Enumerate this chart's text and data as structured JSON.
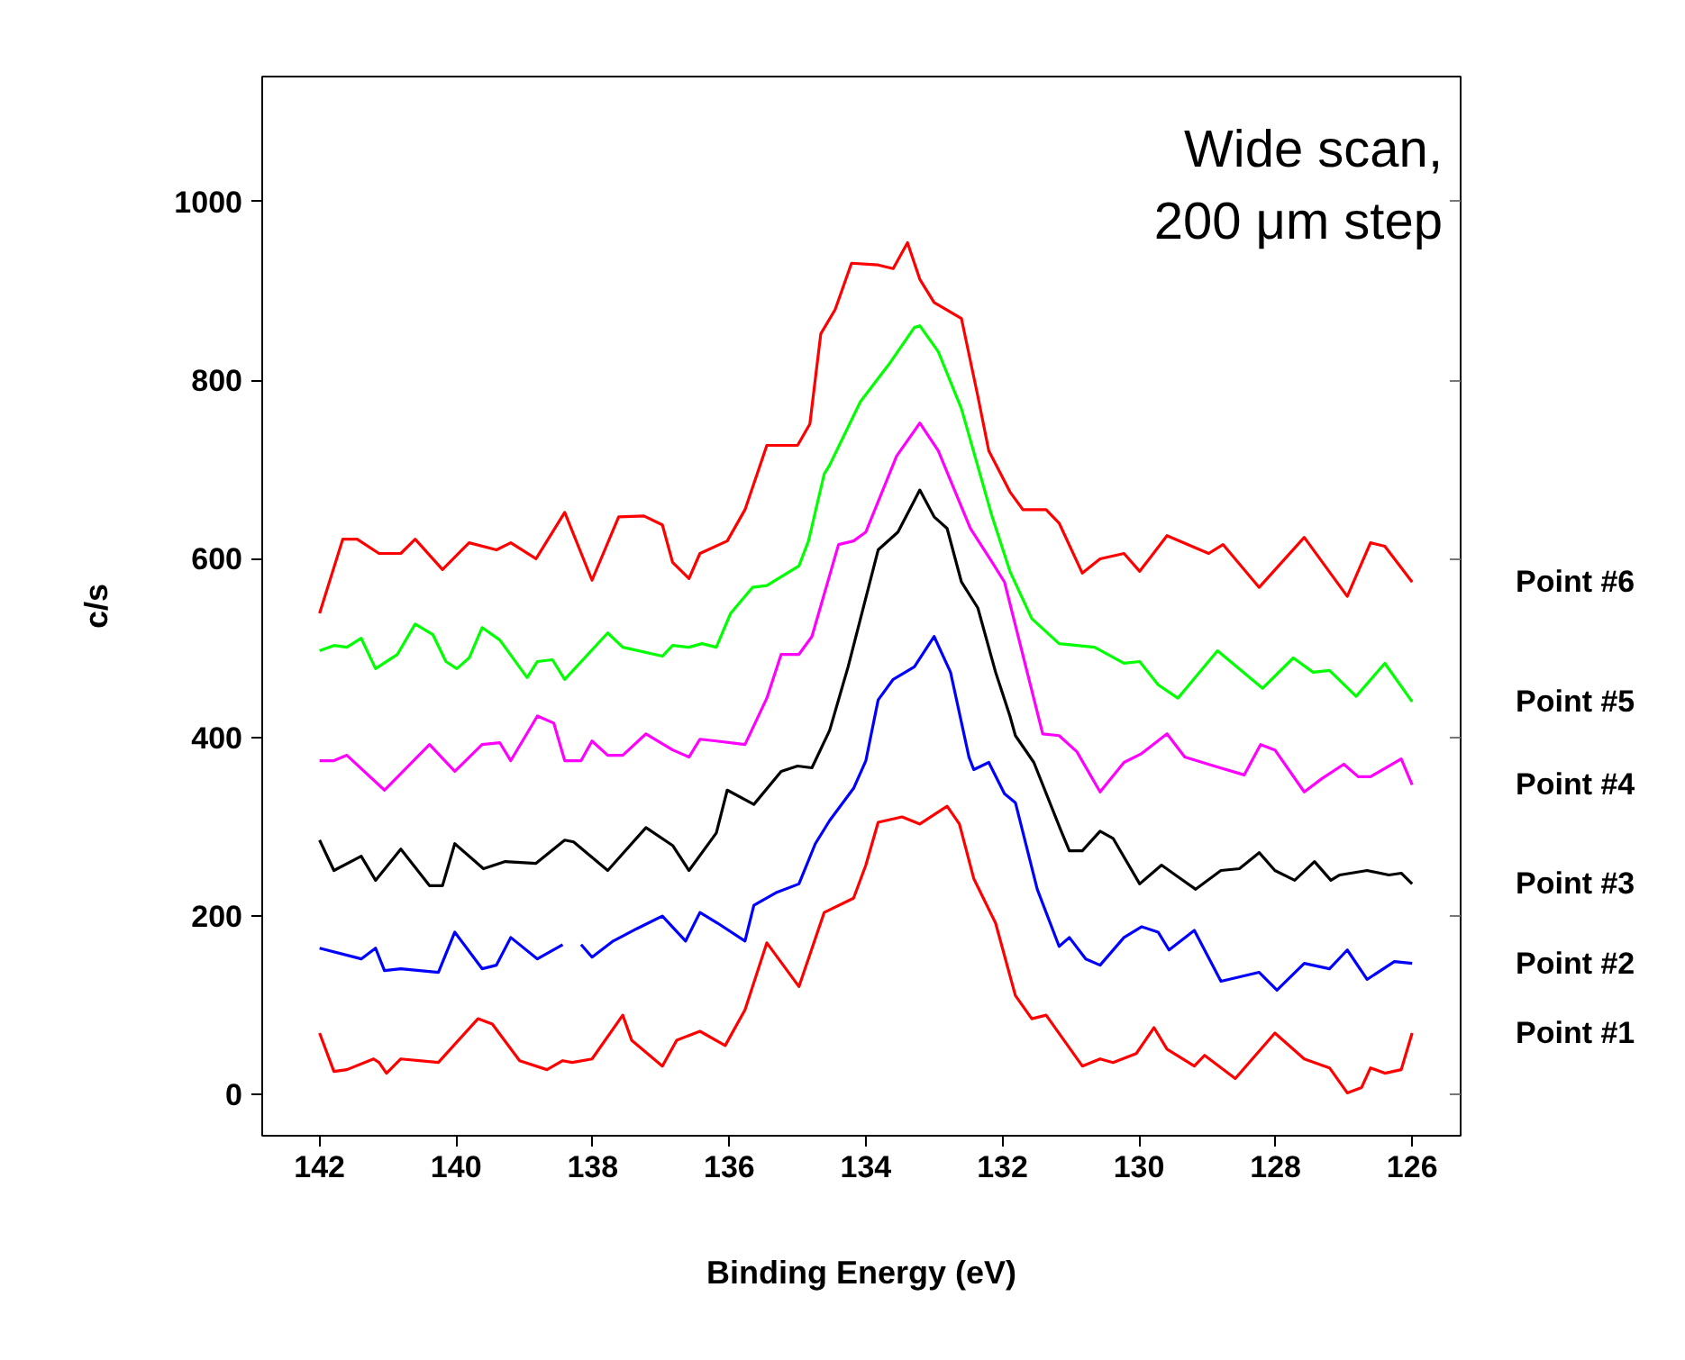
{
  "chart_data": {
    "type": "line",
    "xlabel": "Binding Energy (eV)",
    "ylabel": "c/s",
    "annotations": [
      "Wide scan,\n200 μm step"
    ],
    "xlim": [
      142.84,
      125.29
    ],
    "xticks": [
      142,
      140,
      138,
      136,
      134,
      132,
      130,
      128,
      126
    ],
    "ylim": [
      -46,
      1140
    ],
    "yticks": [
      0,
      200,
      400,
      600,
      800,
      1000
    ],
    "grid": false,
    "marker": "none",
    "line_style": "solid",
    "series": [
      {
        "name": "Point #1",
        "color": "#ff0000",
        "x": [
          142.0,
          141.79,
          141.6,
          141.21,
          141.13,
          141.02,
          140.81,
          140.26,
          139.68,
          139.47,
          139.07,
          138.67,
          138.44,
          138.3,
          138.01,
          137.56,
          137.43,
          136.98,
          136.77,
          136.43,
          136.06,
          135.77,
          135.45,
          134.98,
          134.61,
          134.18,
          134.0,
          133.82,
          133.47,
          133.21,
          132.81,
          132.63,
          132.42,
          132.1,
          131.81,
          131.57,
          131.36,
          130.83,
          130.57,
          130.38,
          130.04,
          129.78,
          129.59,
          129.19,
          129.04,
          128.59,
          128.01,
          127.58,
          127.21,
          126.95,
          126.74,
          126.61,
          126.4,
          126.16,
          126.0
        ],
        "values": [
          69,
          26,
          28,
          40,
          36,
          24,
          40,
          36,
          85,
          79,
          38,
          28,
          38,
          36,
          40,
          89,
          61,
          32,
          61,
          71,
          55,
          95,
          170,
          121,
          204,
          220,
          257,
          305,
          311,
          303,
          323,
          303,
          242,
          192,
          111,
          85,
          89,
          32,
          40,
          36,
          46,
          75,
          51,
          32,
          44,
          18,
          69,
          40,
          30,
          2,
          8,
          30,
          24,
          28,
          69
        ]
      },
      {
        "name": "Point #2",
        "color": "#0000ff",
        "x": [
          142.0,
          141.39,
          141.18,
          141.05,
          140.81,
          140.26,
          140.02,
          139.62,
          139.41,
          139.2,
          138.81,
          138.44,
          138.3,
          138.17,
          138.01,
          137.7,
          137.35,
          136.98,
          136.64,
          136.43,
          136.17,
          135.77,
          135.64,
          135.32,
          134.98,
          134.74,
          134.53,
          134.18,
          134.0,
          133.82,
          133.6,
          133.29,
          133.0,
          132.76,
          132.49,
          132.42,
          132.2,
          131.97,
          131.81,
          131.49,
          131.17,
          131.02,
          130.78,
          130.57,
          130.22,
          129.96,
          129.72,
          129.56,
          129.19,
          128.8,
          128.24,
          127.98,
          127.58,
          127.21,
          126.95,
          126.66,
          126.26,
          126.0
        ],
        "values": [
          164,
          152,
          164,
          139,
          141,
          137,
          182,
          141,
          145,
          176,
          152,
          168,
          null,
          168,
          154,
          172,
          186,
          200,
          172,
          204,
          192,
          172,
          212,
          226,
          236,
          281,
          307,
          343,
          374,
          442,
          465,
          479,
          513,
          473,
          378,
          364,
          372,
          337,
          327,
          230,
          166,
          176,
          152,
          145,
          176,
          188,
          182,
          162,
          184,
          127,
          137,
          117,
          147,
          141,
          162,
          129,
          149,
          147
        ]
      },
      {
        "name": "Point #3",
        "color": "#000000",
        "x": [
          142.0,
          141.79,
          141.39,
          141.18,
          140.81,
          140.39,
          140.2,
          140.02,
          139.6,
          139.28,
          138.83,
          138.41,
          138.28,
          137.78,
          137.22,
          136.83,
          136.59,
          136.19,
          136.03,
          135.64,
          135.24,
          135.0,
          134.79,
          134.53,
          134.26,
          133.82,
          133.53,
          133.21,
          133.0,
          132.81,
          132.6,
          132.36,
          132.1,
          131.89,
          131.81,
          131.54,
          131.15,
          131.02,
          130.83,
          130.57,
          130.38,
          129.99,
          129.67,
          129.43,
          129.17,
          128.8,
          128.53,
          128.24,
          128.01,
          127.72,
          127.43,
          127.19,
          127.06,
          126.66,
          126.34,
          126.16,
          126.0
        ],
        "values": [
          285,
          251,
          267,
          240,
          275,
          234,
          234,
          281,
          253,
          261,
          259,
          285,
          283,
          251,
          299,
          279,
          251,
          293,
          341,
          325,
          362,
          368,
          366,
          408,
          479,
          610,
          630,
          677,
          647,
          634,
          574,
          545,
          473,
          424,
          402,
          372,
          297,
          273,
          273,
          295,
          287,
          236,
          257,
          244,
          230,
          251,
          253,
          271,
          251,
          240,
          261,
          240,
          246,
          251,
          246,
          248,
          236
        ]
      },
      {
        "name": "Point #4",
        "color": "#ff00ff",
        "x": [
          142.0,
          141.79,
          141.6,
          141.05,
          140.39,
          140.02,
          139.62,
          139.36,
          139.2,
          138.81,
          138.57,
          138.41,
          138.17,
          138.01,
          137.78,
          137.56,
          137.22,
          136.83,
          136.59,
          136.43,
          136.19,
          135.77,
          135.45,
          135.24,
          134.98,
          134.79,
          134.4,
          134.18,
          134.0,
          133.55,
          133.21,
          132.94,
          132.47,
          132.15,
          131.97,
          131.41,
          131.17,
          130.91,
          130.57,
          130.22,
          129.96,
          129.59,
          129.33,
          128.9,
          128.46,
          128.22,
          128.01,
          127.58,
          127.32,
          127.0,
          126.79,
          126.61,
          126.16,
          126.0
        ],
        "values": [
          374,
          374,
          380,
          341,
          392,
          362,
          392,
          394,
          374,
          424,
          416,
          374,
          374,
          396,
          380,
          380,
          404,
          386,
          378,
          398,
          396,
          392,
          444,
          493,
          493,
          513,
          616,
          620,
          630,
          715,
          752,
          721,
          634,
          596,
          574,
          404,
          402,
          384,
          339,
          372,
          382,
          404,
          378,
          368,
          358,
          392,
          386,
          339,
          354,
          370,
          356,
          356,
          376,
          347
        ]
      },
      {
        "name": "Point #5",
        "color": "#00ff00",
        "x": [
          142.0,
          141.79,
          141.6,
          141.39,
          141.18,
          140.86,
          140.6,
          140.34,
          140.15,
          139.99,
          139.81,
          139.62,
          139.36,
          138.96,
          138.81,
          138.59,
          138.41,
          137.78,
          137.56,
          136.98,
          136.83,
          136.59,
          136.4,
          136.19,
          135.98,
          135.66,
          135.45,
          135.24,
          134.98,
          134.84,
          134.61,
          134.53,
          134.08,
          133.66,
          133.29,
          133.21,
          132.94,
          132.6,
          132.15,
          131.89,
          131.57,
          131.17,
          130.65,
          130.22,
          129.99,
          129.72,
          129.43,
          128.85,
          128.19,
          127.74,
          127.45,
          127.21,
          126.82,
          126.4,
          126.0
        ],
        "values": [
          497,
          503,
          501,
          511,
          477,
          493,
          527,
          515,
          485,
          477,
          489,
          523,
          509,
          467,
          485,
          487,
          465,
          517,
          501,
          491,
          503,
          501,
          505,
          501,
          539,
          568,
          570,
          580,
          592,
          620,
          695,
          705,
          776,
          818,
          859,
          861,
          832,
          768,
          647,
          586,
          533,
          505,
          501,
          483,
          485,
          459,
          444,
          497,
          455,
          489,
          473,
          475,
          446,
          483,
          440
        ]
      },
      {
        "name": "Point #6",
        "color": "#ff0000",
        "x": [
          142.0,
          141.66,
          141.45,
          141.13,
          140.81,
          140.6,
          140.2,
          139.81,
          139.41,
          139.2,
          138.83,
          138.41,
          138.01,
          137.62,
          137.25,
          136.98,
          136.83,
          136.59,
          136.43,
          136.03,
          135.77,
          135.45,
          135.0,
          134.82,
          134.66,
          134.45,
          134.21,
          133.82,
          133.6,
          133.39,
          133.21,
          133.0,
          132.6,
          132.36,
          132.2,
          131.89,
          131.7,
          131.36,
          131.17,
          130.83,
          130.57,
          130.22,
          129.99,
          129.59,
          128.98,
          128.77,
          128.24,
          127.58,
          126.95,
          126.61,
          126.4,
          126.0
        ],
        "values": [
          539,
          622,
          622,
          606,
          606,
          622,
          588,
          618,
          610,
          618,
          600,
          652,
          576,
          647,
          648,
          638,
          596,
          578,
          606,
          620,
          655,
          727,
          727,
          751,
          852,
          879,
          931,
          929,
          925,
          954,
          913,
          887,
          869,
          782,
          721,
          675,
          655,
          655,
          640,
          584,
          600,
          606,
          586,
          626,
          606,
          616,
          568,
          624,
          558,
          618,
          614,
          574
        ]
      }
    ]
  }
}
